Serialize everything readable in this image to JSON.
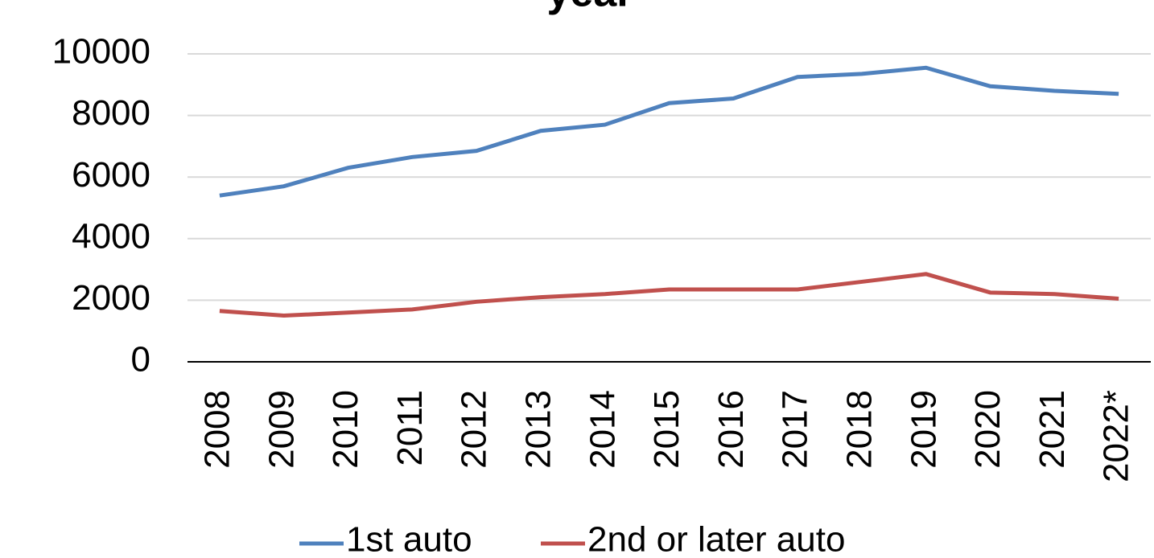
{
  "chart_data": {
    "type": "line",
    "title": "year",
    "categories": [
      "2008",
      "2009",
      "2010",
      "2011",
      "2012",
      "2013",
      "2014",
      "2015",
      "2016",
      "2017",
      "2018",
      "2019",
      "2020",
      "2021",
      "2022*"
    ],
    "series": [
      {
        "name": "1st auto",
        "color": "#4f81bd",
        "values": [
          5400,
          5700,
          6300,
          6650,
          6850,
          7500,
          7700,
          8400,
          8550,
          9250,
          9350,
          9550,
          8950,
          8800,
          8700
        ]
      },
      {
        "name": "2nd or later auto",
        "color": "#c0504d",
        "values": [
          1650,
          1500,
          1600,
          1700,
          1950,
          2100,
          2200,
          2350,
          2350,
          2350,
          2600,
          2850,
          2250,
          2200,
          2050
        ]
      }
    ],
    "ylim": [
      0,
      10000
    ],
    "yticks": [
      0,
      2000,
      4000,
      6000,
      8000,
      10000
    ],
    "grid": true,
    "legend": "bottom"
  }
}
